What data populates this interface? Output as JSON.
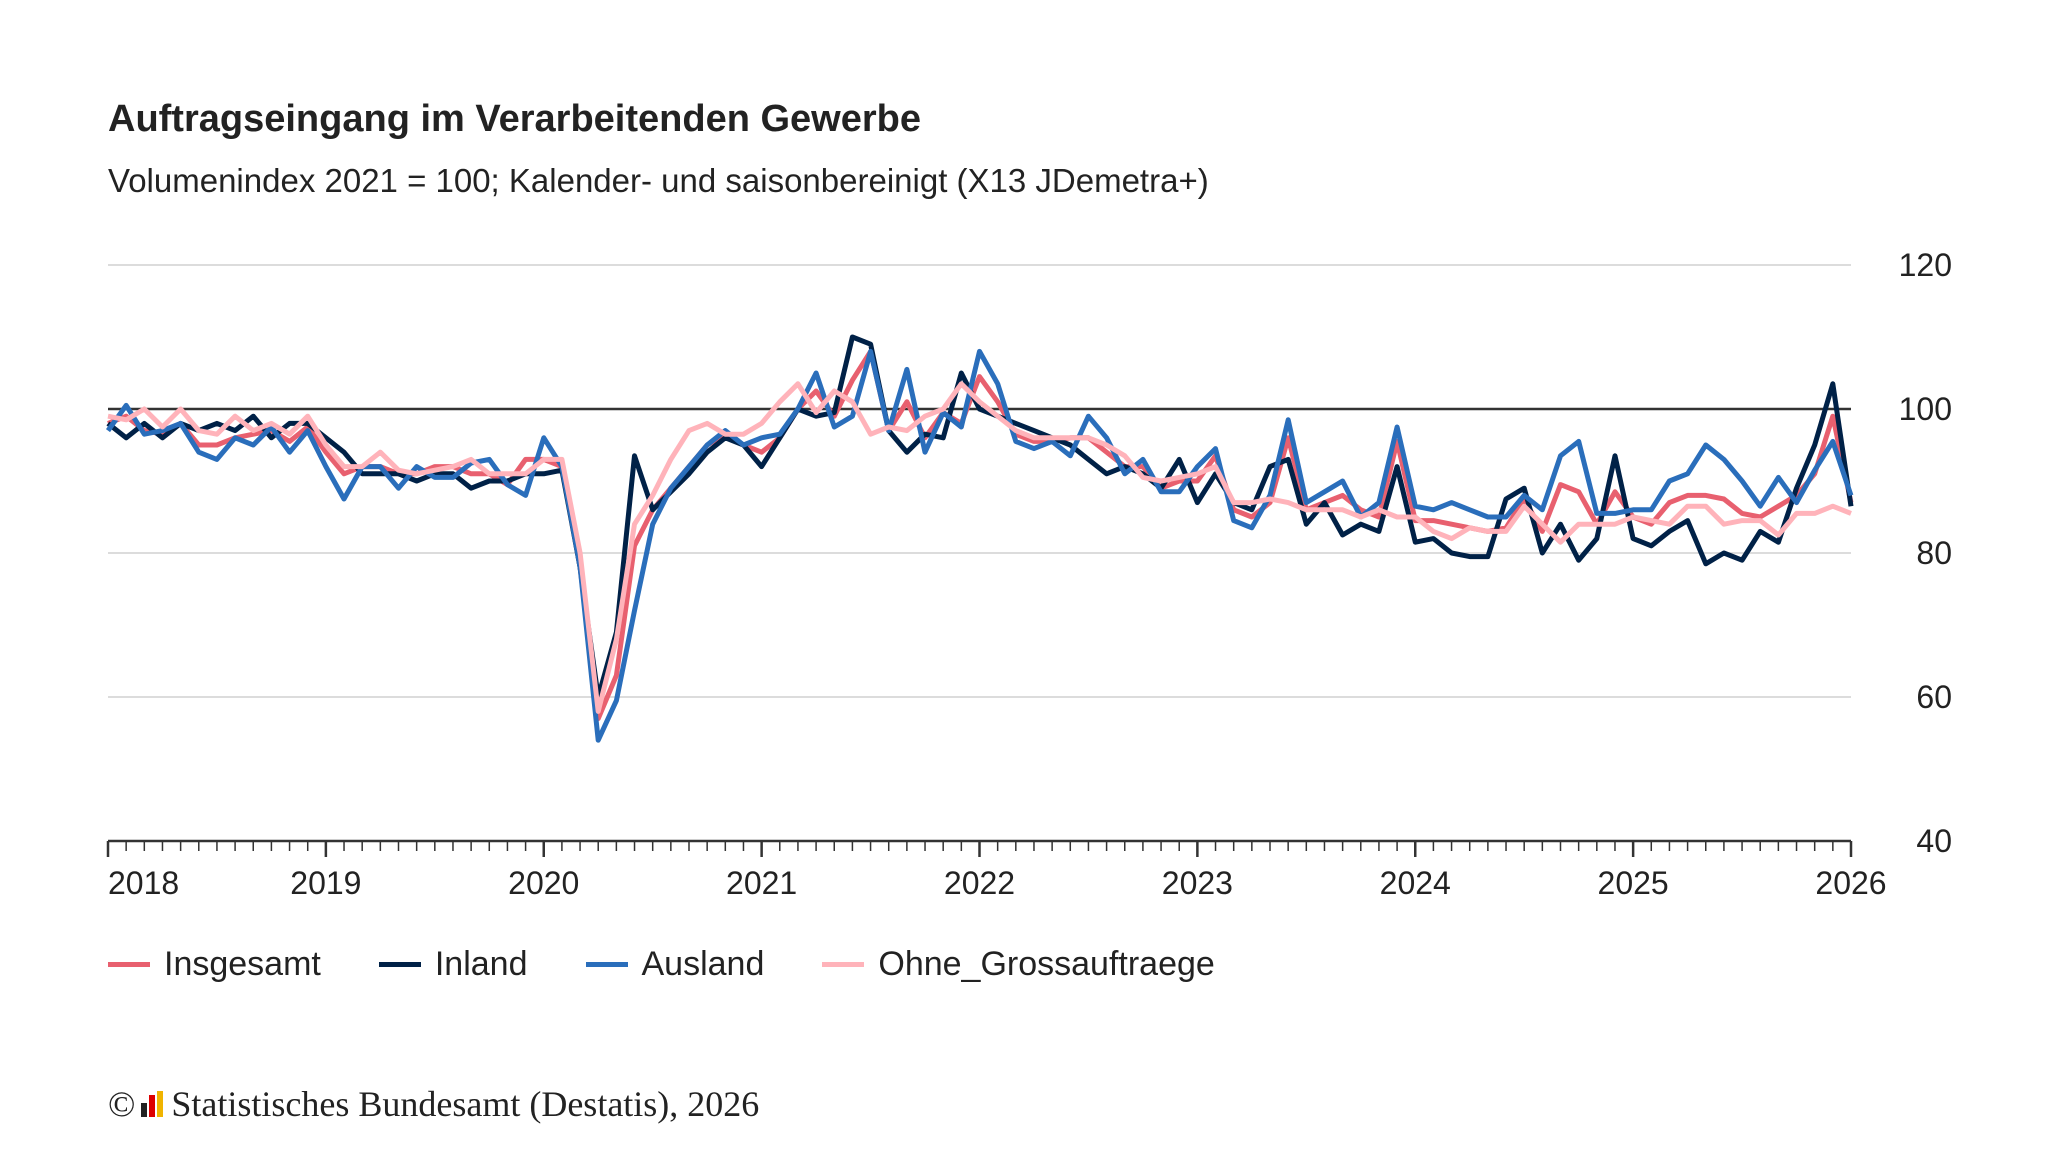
{
  "chart_data": {
    "type": "line",
    "title": "Auftragseingang im Verarbeitenden Gewerbe",
    "subtitle": "Volumenindex 2021 = 100; Kalender- und saisonbereinigt (X13 JDemetra+)",
    "x_start": "2018-01",
    "x_end": "2026-01",
    "x_frequency": "monthly",
    "x_tick_labels": [
      "2018",
      "2019",
      "2020",
      "2021",
      "2022",
      "2023",
      "2024",
      "2025",
      "2026"
    ],
    "y_tick_labels": [
      "120",
      "100",
      "80",
      "60",
      "40"
    ],
    "ylim": [
      40,
      120
    ],
    "y_axis_position": "right",
    "grid": true,
    "reference_line": 100,
    "legend_position": "bottom",
    "series": [
      {
        "name": "Insgesamt",
        "color": "#e8606f",
        "values": [
          98,
          99,
          97,
          96.5,
          98,
          95,
          95,
          96,
          96.5,
          97,
          95.5,
          97.5,
          94,
          91,
          92,
          92,
          91,
          91,
          92,
          92,
          91,
          91,
          89.5,
          93,
          93,
          92,
          78,
          57,
          63,
          81,
          86,
          89,
          92,
          95,
          96.5,
          95,
          94,
          96,
          100,
          102.5,
          99,
          104,
          108,
          97,
          101,
          96,
          99.5,
          98,
          104.5,
          101,
          96.5,
          95.5,
          95.5,
          96,
          96,
          94,
          92,
          92,
          89,
          90,
          90,
          93.5,
          86,
          85,
          87,
          96,
          86,
          87,
          88,
          86,
          85,
          95.5,
          84.5,
          84.5,
          84,
          83.5,
          83,
          83.5,
          87.5,
          83,
          89.5,
          88.5,
          84,
          88.5,
          85,
          84,
          87,
          88,
          88,
          87.5,
          85.5,
          85,
          86.5,
          88,
          91,
          99,
          87
        ]
      },
      {
        "name": "Inland",
        "color": "#002147",
        "values": [
          98,
          96,
          98,
          96,
          98,
          97,
          98,
          97,
          99,
          96,
          98,
          98,
          96,
          94,
          91,
          91,
          91,
          90,
          91,
          91,
          89,
          90,
          90,
          91,
          91,
          91.5,
          78,
          60,
          69,
          93.5,
          86,
          88.5,
          91,
          94,
          96,
          95,
          92,
          96,
          100,
          99,
          99.5,
          110,
          109,
          97,
          94,
          96.5,
          96,
          105,
          100,
          99,
          98,
          97,
          96,
          95,
          93,
          91,
          92,
          91,
          89,
          93,
          87,
          91,
          87,
          86,
          92,
          93,
          84,
          87,
          82.5,
          84,
          83,
          92,
          81.5,
          82,
          80,
          79.5,
          79.5,
          87.5,
          89,
          80,
          84,
          79,
          82,
          93.5,
          82,
          81,
          83,
          84.5,
          78.5,
          80,
          79,
          83,
          81.5,
          89,
          95,
          103.5,
          86.5
        ]
      },
      {
        "name": "Ausland",
        "color": "#2a6ebb",
        "values": [
          97,
          100.5,
          96.5,
          97,
          98,
          94,
          93,
          96,
          95,
          97.5,
          94,
          97,
          92,
          87.5,
          92,
          92,
          89,
          92,
          90.5,
          90.5,
          92.5,
          93,
          89.5,
          88,
          96,
          92,
          78,
          54,
          59.5,
          72,
          84,
          89,
          92,
          95,
          97,
          95,
          96,
          96.5,
          100,
          105,
          97.5,
          99,
          108,
          97,
          105.5,
          94,
          99.5,
          97.5,
          108,
          103.5,
          95.5,
          94.5,
          95.5,
          93.5,
          99,
          96,
          91,
          93,
          88.5,
          88.5,
          92,
          94.5,
          84.5,
          83.5,
          88,
          98.5,
          87,
          88.5,
          90,
          85,
          87,
          97.5,
          86.5,
          86,
          87,
          86,
          85,
          85,
          88,
          86,
          93.5,
          95.5,
          85.5,
          85.5,
          86,
          86,
          90,
          91,
          95,
          93,
          90,
          86.5,
          90.5,
          87,
          91.5,
          95.5,
          88
        ]
      },
      {
        "name": "Ohne_Grossauftraege",
        "color": "#ffb3ba",
        "values": [
          99,
          98.5,
          100,
          97.5,
          100,
          97,
          96.5,
          99,
          97,
          98,
          96.5,
          99,
          95,
          92,
          92,
          94,
          91.5,
          91,
          91.5,
          92,
          93,
          91,
          91,
          91,
          93,
          93,
          80,
          58,
          68,
          84,
          88,
          93,
          97,
          98,
          96.5,
          96.5,
          98,
          101,
          103.5,
          99.5,
          102.5,
          101,
          96.5,
          97.5,
          97,
          99,
          100,
          103.5,
          101,
          99,
          97,
          96,
          96,
          96,
          96,
          95,
          93.5,
          90.5,
          90,
          90.5,
          91,
          92,
          87,
          87,
          87.5,
          87,
          86,
          86,
          86,
          85,
          86,
          85,
          85,
          83,
          82,
          83.5,
          83,
          83,
          86.5,
          84,
          81.5,
          84,
          84,
          84,
          85,
          84.5,
          84,
          86.5,
          86.5,
          84,
          84.5,
          84.5,
          82.5,
          85.5,
          85.5,
          86.5,
          85.5
        ]
      }
    ]
  },
  "footer": {
    "copyright": "©",
    "source": "Statistisches Bundesamt (Destatis), 2026"
  }
}
